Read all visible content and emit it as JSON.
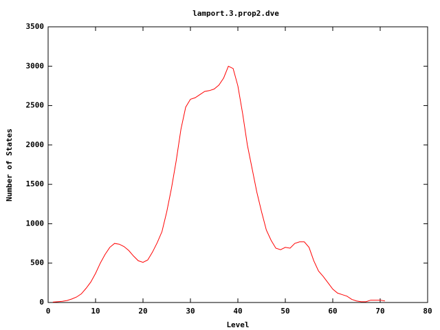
{
  "chart_data": {
    "type": "line",
    "title": "lamport.3.prop2.dve",
    "x_label": "Level",
    "y_label": "Number of States",
    "x": [
      1,
      2,
      3,
      4,
      5,
      6,
      7,
      8,
      9,
      10,
      11,
      12,
      13,
      14,
      15,
      16,
      17,
      18,
      19,
      20,
      21,
      22,
      23,
      24,
      25,
      26,
      27,
      28,
      29,
      30,
      31,
      32,
      33,
      34,
      35,
      36,
      37,
      38,
      39,
      40,
      41,
      42,
      43,
      44,
      45,
      46,
      47,
      48,
      49,
      50,
      51,
      52,
      53,
      54,
      55,
      56,
      57,
      58,
      59,
      60,
      61,
      62,
      63,
      64,
      65,
      66,
      67,
      68,
      69,
      70,
      71
    ],
    "series": [
      {
        "name": "lamport.3.prop2.dve",
        "color": "#ff0000",
        "values": [
          5,
          10,
          15,
          25,
          45,
          70,
          110,
          180,
          260,
          370,
          500,
          610,
          700,
          750,
          740,
          710,
          660,
          590,
          530,
          510,
          540,
          640,
          760,
          900,
          1150,
          1450,
          1800,
          2200,
          2480,
          2580,
          2600,
          2640,
          2680,
          2690,
          2710,
          2760,
          2850,
          3000,
          2970,
          2750,
          2400,
          2000,
          1700,
          1400,
          1150,
          920,
          790,
          690,
          670,
          700,
          690,
          750,
          770,
          770,
          700,
          530,
          400,
          330,
          250,
          170,
          120,
          100,
          80,
          40,
          20,
          10,
          10,
          30,
          30,
          30,
          20
        ]
      }
    ],
    "xlim": [
      0,
      80
    ],
    "ylim": [
      0,
      3500
    ],
    "xticks": [
      0,
      10,
      20,
      30,
      40,
      50,
      60,
      70,
      80
    ],
    "yticks": [
      0,
      500,
      1000,
      1500,
      2000,
      2500,
      3000,
      3500
    ]
  }
}
